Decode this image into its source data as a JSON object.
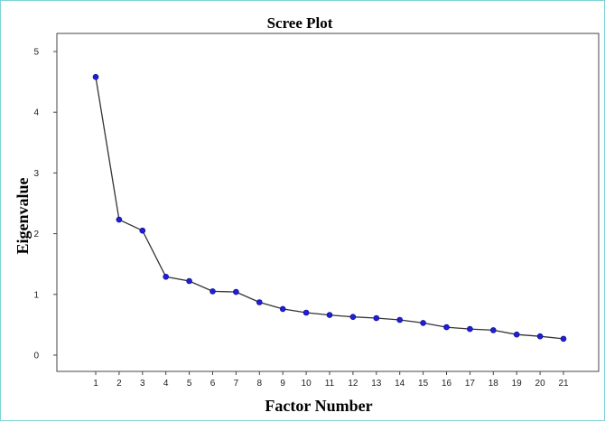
{
  "chart_data": {
    "type": "line",
    "title": "Scree Plot",
    "xlabel": "Factor Number",
    "ylabel": "Eigenvalue",
    "x": [
      1,
      2,
      3,
      4,
      5,
      6,
      7,
      8,
      9,
      10,
      11,
      12,
      13,
      14,
      15,
      16,
      17,
      18,
      19,
      20,
      21
    ],
    "values": [
      4.58,
      2.23,
      2.05,
      1.29,
      1.22,
      1.05,
      1.04,
      0.87,
      0.76,
      0.7,
      0.66,
      0.63,
      0.61,
      0.58,
      0.53,
      0.46,
      0.43,
      0.41,
      0.34,
      0.31,
      0.27
    ],
    "xticks": [
      "1",
      "2",
      "3",
      "4",
      "5",
      "6",
      "7",
      "8",
      "9",
      "10",
      "11",
      "12",
      "13",
      "14",
      "15",
      "16",
      "17",
      "18",
      "19",
      "20",
      "21"
    ],
    "yticks": [
      "0",
      "1",
      "2",
      "3",
      "4",
      "5"
    ],
    "ylim": [
      0,
      5
    ],
    "grid": false,
    "line_color": "#333333",
    "marker_color": "#1f1fd6"
  }
}
